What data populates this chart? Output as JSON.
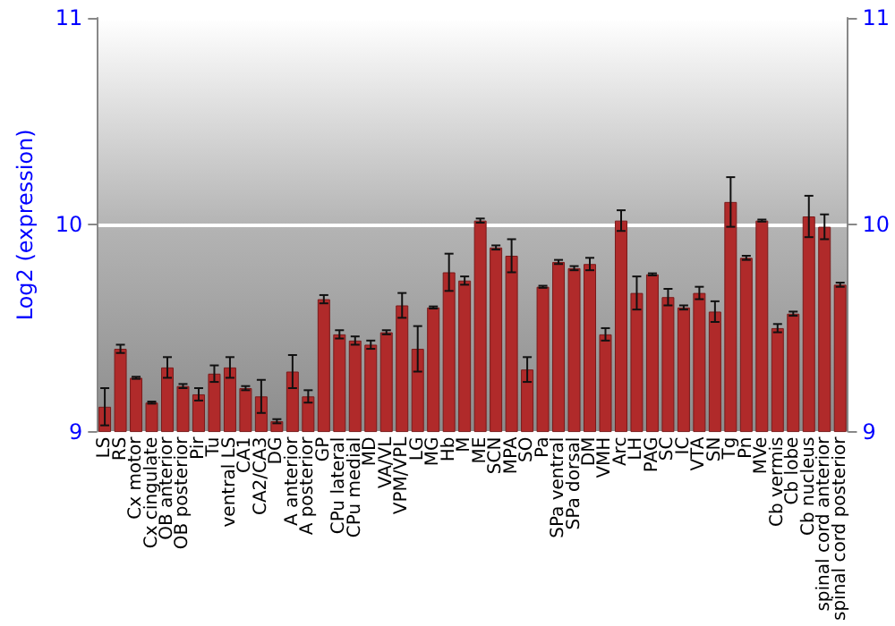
{
  "chart_data": {
    "type": "bar",
    "ylabel": "Log2 (expression)",
    "categories": [
      "LS",
      "RS",
      "Cx motor",
      "Cx cingulate",
      "OB anterior",
      "OB posterior",
      "Pir",
      "Tu",
      "ventral LS",
      "CA1",
      "CA2/CA3",
      "DG",
      "A anterior",
      "A posterior",
      "GP",
      "CPu lateral",
      "CPu medial",
      "MD",
      "VA/VL",
      "VPM/VPL",
      "LG",
      "MG",
      "Hb",
      "M",
      "ME",
      "SCN",
      "MPA",
      "SO",
      "Pa",
      "SPa ventral",
      "SPa dorsal",
      "DM",
      "VMH",
      "Arc",
      "LH",
      "PAG",
      "SC",
      "IC",
      "VTA",
      "SN",
      "Tg",
      "Pn",
      "MVe",
      "Cb vermis",
      "Cb lobe",
      "Cb nucleus",
      "spinal cord anterior",
      "spinal cord posterior"
    ],
    "series": [
      {
        "color": "#b02a2a",
        "values": [
          9.12,
          9.4,
          9.26,
          9.14,
          9.31,
          9.22,
          9.18,
          9.28,
          9.31,
          9.21,
          9.17,
          9.05,
          9.29,
          9.17,
          9.64,
          9.47,
          9.44,
          9.42,
          9.48,
          9.61,
          9.4,
          9.6,
          9.77,
          9.73,
          10.02,
          9.89,
          9.85,
          9.3,
          9.7,
          9.82,
          9.79,
          9.81,
          9.47,
          10.02,
          9.67,
          9.76,
          9.65,
          9.6,
          9.67,
          9.58,
          10.11,
          9.84,
          10.02,
          9.5,
          9.57,
          10.04,
          9.99,
          9.71
        ],
        "errors": [
          0.09,
          0.02,
          0.005,
          0.005,
          0.05,
          0.01,
          0.03,
          0.04,
          0.05,
          0.01,
          0.08,
          0.01,
          0.08,
          0.03,
          0.02,
          0.02,
          0.02,
          0.02,
          0.01,
          0.06,
          0.11,
          0.005,
          0.09,
          0.02,
          0.01,
          0.01,
          0.08,
          0.06,
          0.005,
          0.01,
          0.01,
          0.03,
          0.03,
          0.05,
          0.08,
          0.005,
          0.04,
          0.01,
          0.03,
          0.05,
          0.12,
          0.01,
          0.005,
          0.02,
          0.01,
          0.1,
          0.06,
          0.01
        ]
      }
    ],
    "ylim": [
      9,
      11
    ],
    "yticks": [
      9,
      10,
      11
    ],
    "y2lim": [
      9,
      11
    ],
    "y2ticks": [
      9,
      10,
      11
    ],
    "grid": "y"
  }
}
